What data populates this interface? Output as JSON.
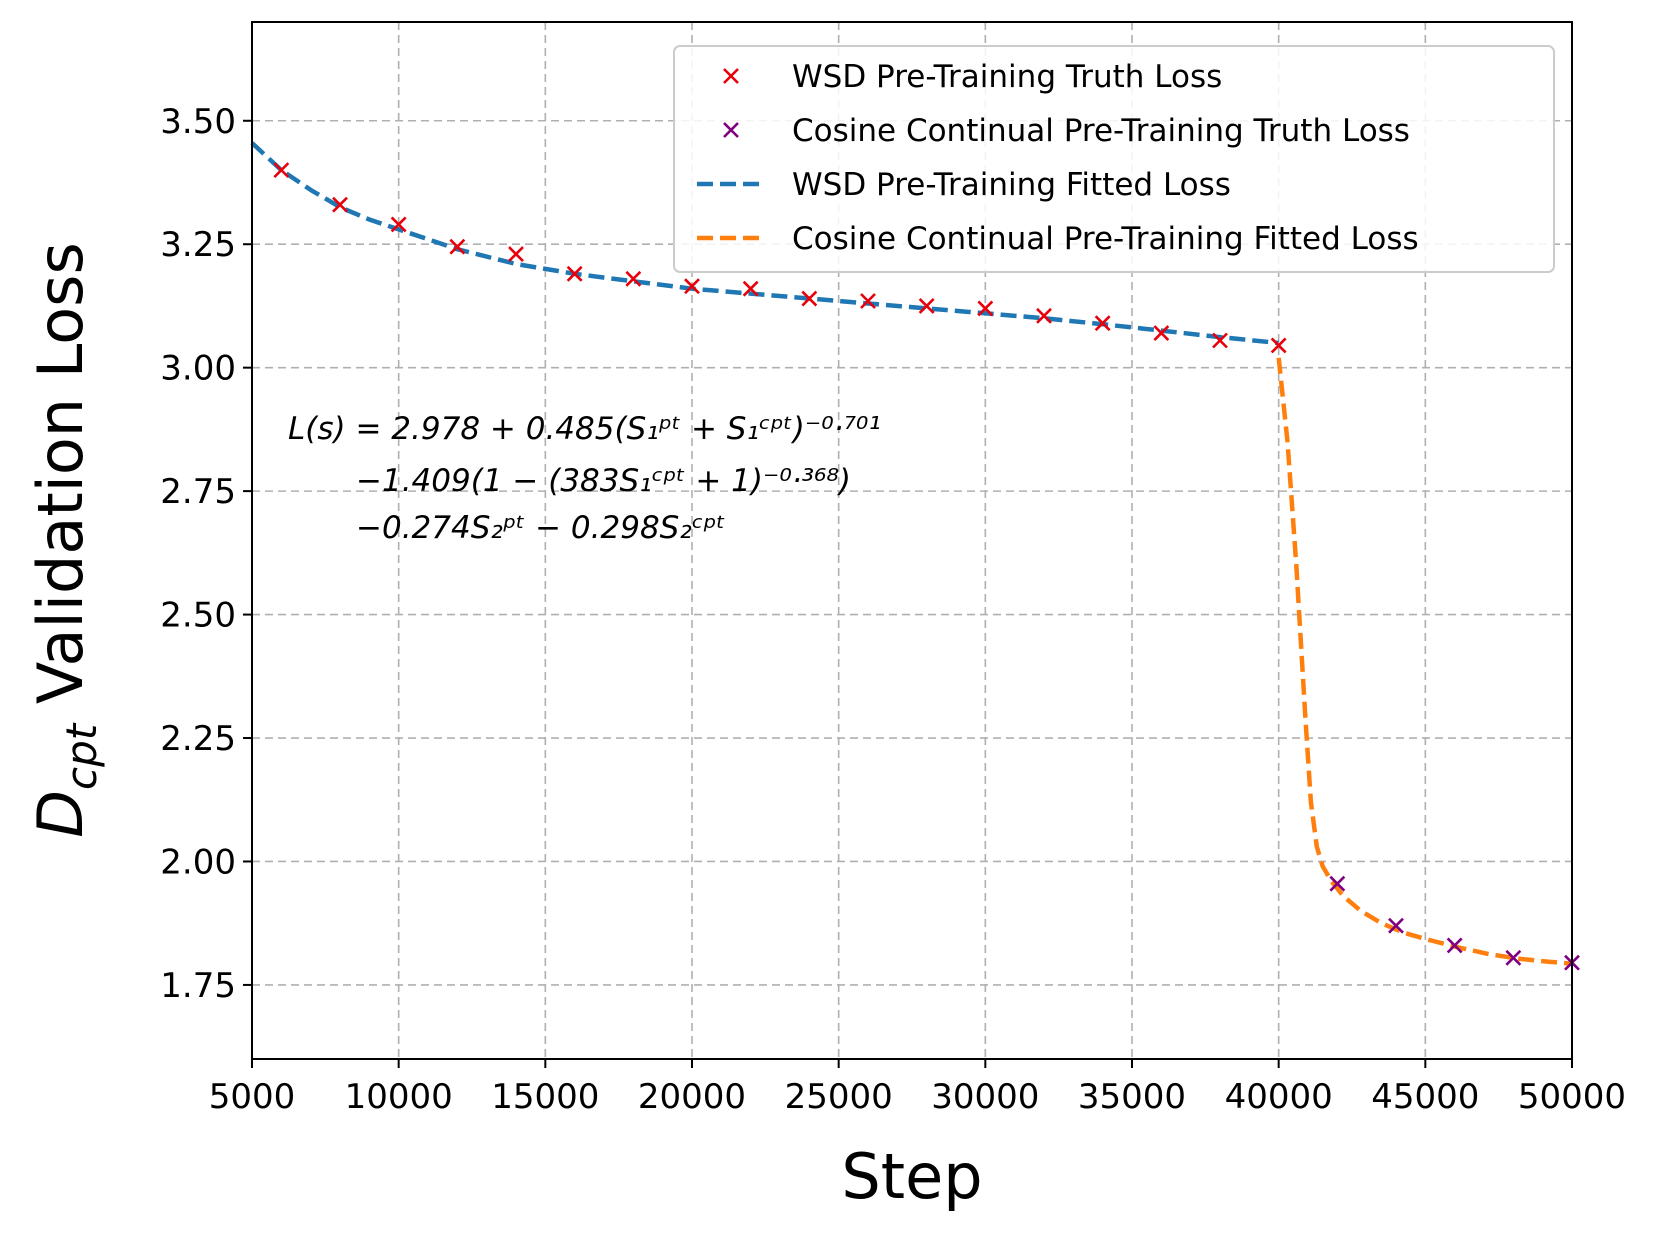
{
  "chart_data": {
    "type": "line",
    "title": "",
    "xlabel": "Step",
    "ylabel": {
      "main": "D",
      "sub": "cpt",
      "rest": " Validation Loss"
    },
    "xlim": [
      5000,
      50000
    ],
    "ylim": [
      1.6,
      3.7
    ],
    "xticks": [
      5000,
      10000,
      15000,
      20000,
      25000,
      30000,
      35000,
      40000,
      45000,
      50000
    ],
    "yticks": [
      1.75,
      2.0,
      2.25,
      2.5,
      2.75,
      3.0,
      3.25,
      3.5
    ],
    "xtick_labels": [
      "5000",
      "10000",
      "15000",
      "20000",
      "25000",
      "30000",
      "35000",
      "40000",
      "45000",
      "50000"
    ],
    "ytick_labels": [
      "1.75",
      "2.00",
      "2.25",
      "2.50",
      "2.75",
      "3.00",
      "3.25",
      "3.50"
    ],
    "grid": true,
    "legend_position": "top-right",
    "colors": {
      "wsd_truth": "#e8000b",
      "cosine_truth": "#7f007f",
      "wsd_fit": "#1f77b4",
      "cosine_fit": "#ff7f0e"
    },
    "series": [
      {
        "name": "WSD Pre-Training Truth Loss",
        "kind": "scatter",
        "marker": "x",
        "color_key": "wsd_truth",
        "x": [
          6000,
          8000,
          10000,
          12000,
          14000,
          16000,
          18000,
          20000,
          22000,
          24000,
          26000,
          28000,
          30000,
          32000,
          34000,
          36000,
          38000,
          40000
        ],
        "y": [
          3.4,
          3.33,
          3.29,
          3.245,
          3.23,
          3.19,
          3.18,
          3.165,
          3.16,
          3.14,
          3.135,
          3.125,
          3.12,
          3.105,
          3.09,
          3.07,
          3.055,
          3.045
        ]
      },
      {
        "name": "Cosine Continual Pre-Training Truth Loss",
        "kind": "scatter",
        "marker": "x",
        "color_key": "cosine_truth",
        "x": [
          42000,
          44000,
          46000,
          48000,
          50000
        ],
        "y": [
          1.955,
          1.87,
          1.83,
          1.805,
          1.795
        ]
      },
      {
        "name": "WSD Pre-Training Fitted Loss",
        "kind": "line",
        "style": "dashed",
        "color_key": "wsd_fit",
        "x": [
          5000,
          6000,
          7000,
          8000,
          9000,
          10000,
          12000,
          14000,
          16000,
          18000,
          20000,
          22000,
          24000,
          26000,
          28000,
          30000,
          32000,
          34000,
          36000,
          38000,
          40000
        ],
        "y": [
          3.455,
          3.4,
          3.36,
          3.325,
          3.3,
          3.28,
          3.24,
          3.21,
          3.19,
          3.175,
          3.16,
          3.15,
          3.14,
          3.13,
          3.12,
          3.11,
          3.1,
          3.088,
          3.075,
          3.062,
          3.05
        ]
      },
      {
        "name": "Cosine Continual Pre-Training Fitted Loss",
        "kind": "line",
        "style": "dashed",
        "color_key": "cosine_fit",
        "x": [
          40000,
          40300,
          40600,
          40900,
          41100,
          41300,
          41500,
          41800,
          42200,
          42800,
          43500,
          44300,
          45200,
          46200,
          47200,
          48200,
          49200,
          50000
        ],
        "y": [
          3.02,
          2.85,
          2.6,
          2.3,
          2.12,
          2.03,
          1.99,
          1.96,
          1.93,
          1.9,
          1.875,
          1.855,
          1.84,
          1.825,
          1.812,
          1.803,
          1.797,
          1.793
        ]
      }
    ],
    "annotations": {
      "equation_lines": [
        "L(s) = 2.978 + 0.485(S₁ᵖᵗ + S₁ᶜᵖᵗ)⁻⁰·⁷⁰¹",
        "−1.409(1 − (383S₁ᶜᵖᵗ + 1)⁻⁰·³⁶⁸)",
        "−0.274S₂ᵖᵗ − 0.298S₂ᶜᵖᵗ"
      ]
    }
  }
}
